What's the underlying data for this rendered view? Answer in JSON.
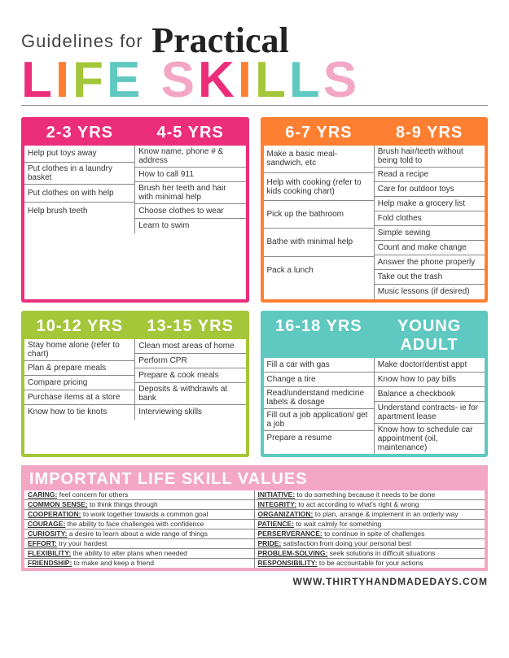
{
  "title": {
    "line1": "Guidelines for",
    "script": "Practical",
    "line2": "LIFE SKILLS"
  },
  "boxes": [
    {
      "color": "pink",
      "headers": [
        "2-3 YRS",
        "4-5 YRS"
      ],
      "cols": [
        [
          "Help put toys away",
          "Put clothes in a laundry basket",
          "Put clothes on with help",
          "Help brush teeth"
        ],
        [
          "Know name, phone # & address",
          "How to call 911",
          "Brush her teeth and hair with minimal help",
          "Choose clothes to wear",
          "Learn to swim"
        ]
      ]
    },
    {
      "color": "orange",
      "headers": [
        "6-7 YRS",
        "8-9 YRS"
      ],
      "cols": [
        [
          "Make a basic meal- sandwich, etc",
          "Help with cooking (refer to kids cooking chart)",
          "Pick up the bathroom",
          "Bathe with minimal help",
          "Pack a lunch"
        ],
        [
          "Brush hair/teeth without being told to",
          "Read a recipe",
          "Care for outdoor toys",
          "Help make a grocery list",
          "Fold clothes",
          "Simple sewing",
          "Count and make change",
          "Answer the phone properly",
          "Take out the trash",
          "Music lessons (if desired)"
        ]
      ]
    },
    {
      "color": "green",
      "headers": [
        "10-12 YRS",
        "13-15 YRS"
      ],
      "cols": [
        [
          "Stay home alone (refer to chart)",
          "Plan & prepare meals",
          "Compare pricing",
          "Purchase items at a store",
          "Know how to tie knots"
        ],
        [
          "Clean most areas of home",
          "Perform CPR",
          "Prepare & cook meals",
          "Deposits & withdrawls at bank",
          "Interviewing skills"
        ]
      ]
    },
    {
      "color": "teal",
      "headers": [
        "16-18 YRS",
        "YOUNG ADULT"
      ],
      "cols": [
        [
          "Fill a car with gas",
          "Change a tire",
          "Read/understand medicine labels & dosage",
          "Fill out a job application/ get a job",
          "Prepare a resume"
        ],
        [
          "Make doctor/dentist appt",
          "Know how to pay bills",
          "Balance a checkbook",
          "Understand contracts- ie for apartment lease",
          "Know how to schedule car appointment (oil, maintenance)"
        ]
      ]
    }
  ],
  "values": {
    "header": "IMPORTANT LIFE SKILL VALUES",
    "cols": [
      [
        [
          "CARING",
          "feel concern for others"
        ],
        [
          "COMMON SENSE",
          "to think things through"
        ],
        [
          "COOPERATION",
          "to work together towards a common goal"
        ],
        [
          "COURAGE",
          "the ability to face challenges with confidence"
        ],
        [
          "CURIOSITY",
          "a desire to learn about a wide range of things"
        ],
        [
          "EFFORT",
          "try your hardest"
        ],
        [
          "FLEXIBILITY",
          "the ability to alter plans when needed"
        ],
        [
          "FRIENDSHIP",
          "to make and keep a friend"
        ]
      ],
      [
        [
          "INITIATIVE",
          "to do something because it needs to be done"
        ],
        [
          "INTEGRITY",
          "to act according to what's right & wrong"
        ],
        [
          "ORGANIZATION",
          "to plan, arrange & implement in an orderly way"
        ],
        [
          "PATIENCE",
          "to wait calmly for something"
        ],
        [
          "PERSERVERANCE",
          "to continue in spite of challenges"
        ],
        [
          "PRIDE",
          "satisfaction from doing your personal best"
        ],
        [
          "PROBLEM-SOLVING",
          "seek solutions in difficult situations"
        ],
        [
          "RESPONSIBILITY",
          "to be accountable for your actions"
        ]
      ]
    ]
  },
  "footer": "WWW.THIRTYHANDMADEDAYS.COM"
}
